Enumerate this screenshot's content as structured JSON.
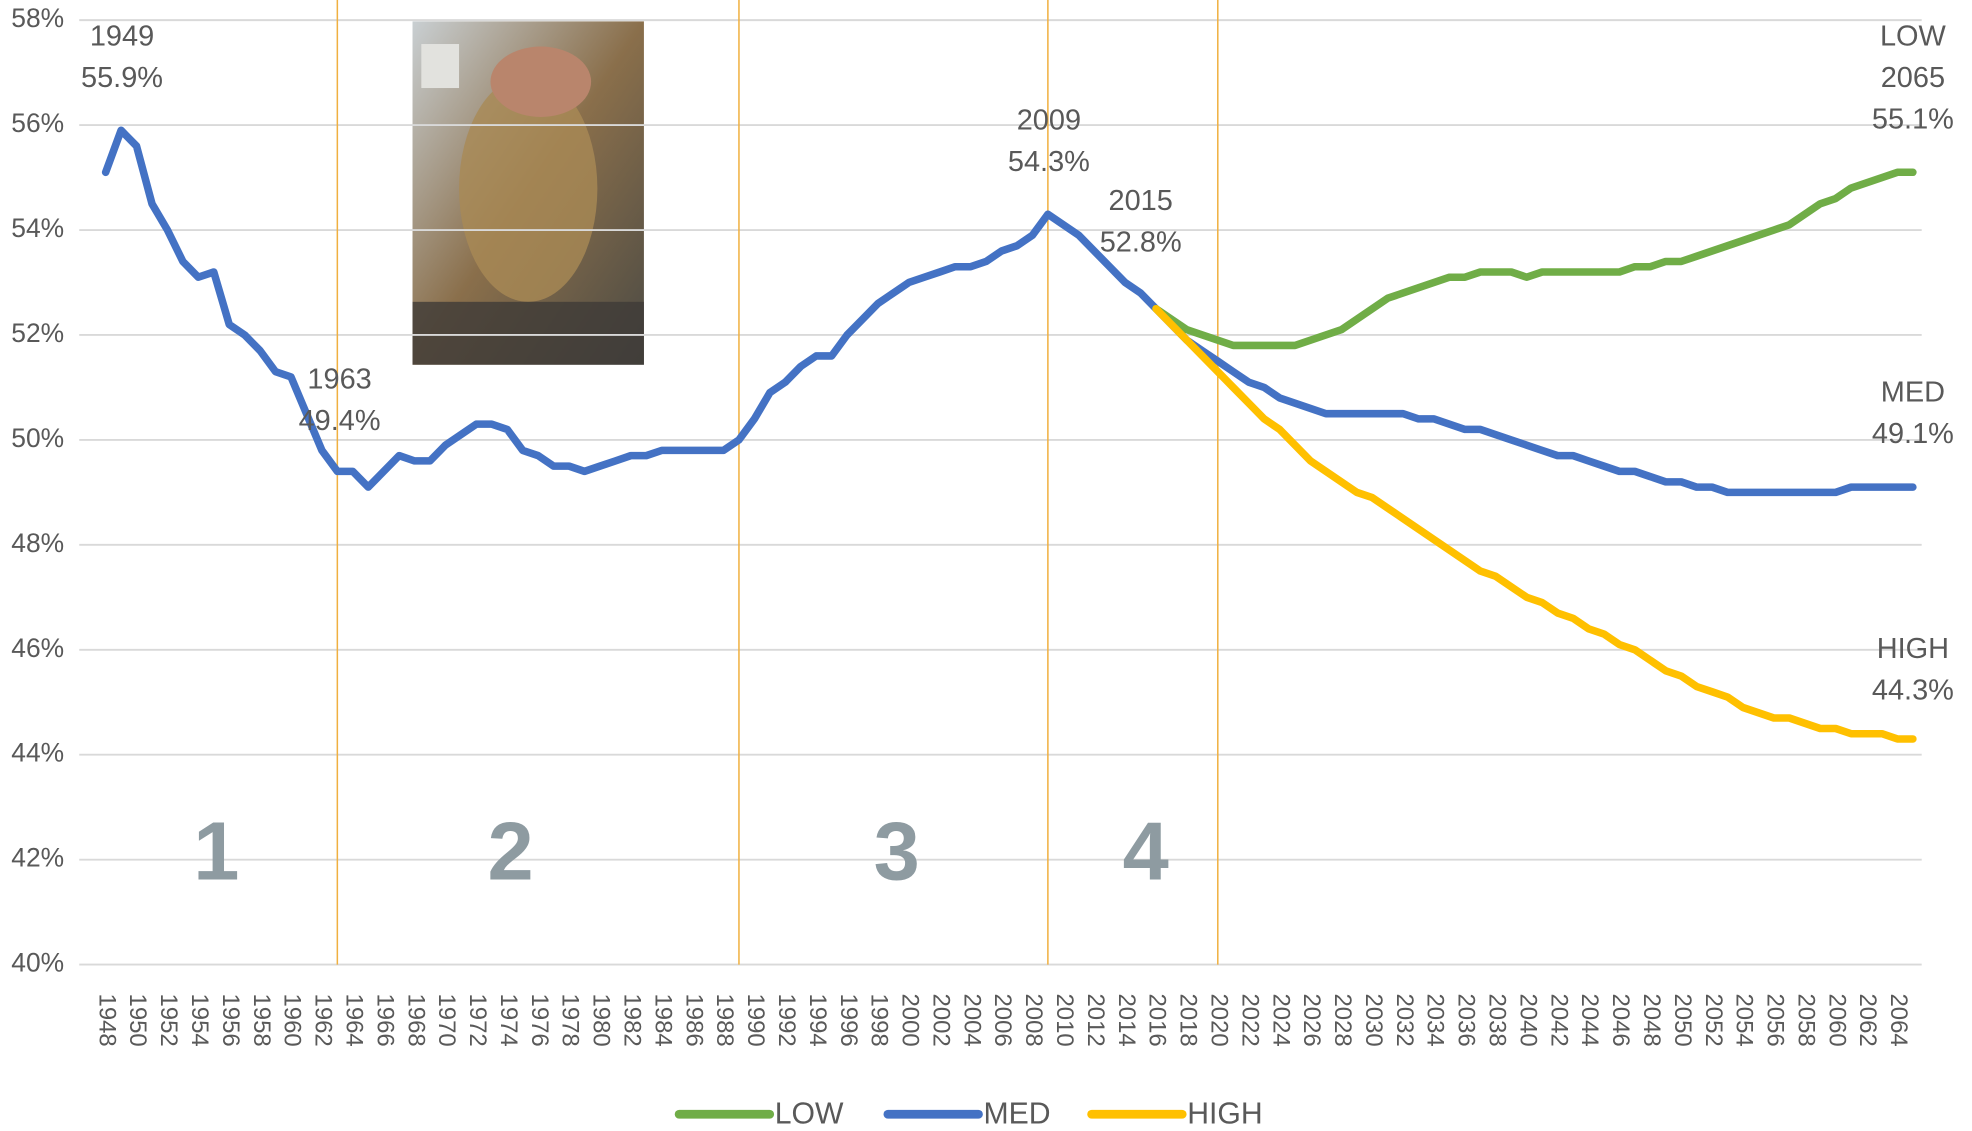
{
  "chart_data": {
    "type": "line",
    "x": [
      1948,
      1949,
      1950,
      1951,
      1952,
      1953,
      1954,
      1955,
      1956,
      1957,
      1958,
      1959,
      1960,
      1961,
      1962,
      1963,
      1964,
      1965,
      1966,
      1967,
      1968,
      1969,
      1970,
      1971,
      1972,
      1973,
      1974,
      1975,
      1976,
      1977,
      1978,
      1979,
      1980,
      1981,
      1982,
      1983,
      1984,
      1985,
      1986,
      1987,
      1988,
      1989,
      1990,
      1991,
      1992,
      1993,
      1994,
      1995,
      1996,
      1997,
      1998,
      1999,
      2000,
      2001,
      2002,
      2003,
      2004,
      2005,
      2006,
      2007,
      2008,
      2009,
      2010,
      2011,
      2012,
      2013,
      2014,
      2015,
      2016,
      2017,
      2018,
      2019,
      2020,
      2021,
      2022,
      2023,
      2024,
      2025,
      2026,
      2027,
      2028,
      2029,
      2030,
      2031,
      2032,
      2033,
      2034,
      2035,
      2036,
      2037,
      2038,
      2039,
      2040,
      2041,
      2042,
      2043,
      2044,
      2045,
      2046,
      2047,
      2048,
      2049,
      2050,
      2051,
      2052,
      2053,
      2054,
      2055,
      2056,
      2057,
      2058,
      2059,
      2060,
      2061,
      2062,
      2063,
      2064,
      2065
    ],
    "xlim": [
      1948,
      2065
    ],
    "xticks": [
      1948,
      1950,
      1952,
      1954,
      1956,
      1958,
      1960,
      1962,
      1964,
      1966,
      1968,
      1970,
      1972,
      1974,
      1976,
      1978,
      1980,
      1982,
      1984,
      1986,
      1988,
      1990,
      1992,
      1994,
      1996,
      1998,
      2000,
      2002,
      2004,
      2006,
      2008,
      2010,
      2012,
      2014,
      2016,
      2018,
      2020,
      2022,
      2024,
      2026,
      2028,
      2030,
      2032,
      2034,
      2036,
      2038,
      2040,
      2042,
      2044,
      2046,
      2048,
      2050,
      2052,
      2054,
      2056,
      2058,
      2060,
      2062,
      2064
    ],
    "ylim": [
      40,
      58
    ],
    "yticks": [
      {
        "value": 40,
        "label": "40%"
      },
      {
        "value": 42,
        "label": "42%"
      },
      {
        "value": 44,
        "label": "44%"
      },
      {
        "value": 46,
        "label": "46%"
      },
      {
        "value": 48,
        "label": "48%"
      },
      {
        "value": 50,
        "label": "50%"
      },
      {
        "value": 52,
        "label": "52%"
      },
      {
        "value": 54,
        "label": "54%"
      },
      {
        "value": 56,
        "label": "56%"
      },
      {
        "value": 58,
        "label": "58%"
      }
    ],
    "grid": true,
    "legend": "bottom",
    "series": [
      {
        "name": "LOW",
        "color": "#70ad47",
        "values": [
          null,
          null,
          null,
          null,
          null,
          null,
          null,
          null,
          null,
          null,
          null,
          null,
          null,
          null,
          null,
          null,
          null,
          null,
          null,
          null,
          null,
          null,
          null,
          null,
          null,
          null,
          null,
          null,
          null,
          null,
          null,
          null,
          null,
          null,
          null,
          null,
          null,
          null,
          null,
          null,
          null,
          null,
          null,
          null,
          null,
          null,
          null,
          null,
          null,
          null,
          null,
          null,
          null,
          null,
          null,
          null,
          null,
          null,
          null,
          null,
          null,
          null,
          null,
          null,
          null,
          null,
          null,
          null,
          52.5,
          52.3,
          52.1,
          52.0,
          51.9,
          51.8,
          51.8,
          51.8,
          51.8,
          51.8,
          51.9,
          52.0,
          52.1,
          52.3,
          52.5,
          52.7,
          52.8,
          52.9,
          53.0,
          53.1,
          53.1,
          53.2,
          53.2,
          53.2,
          53.1,
          53.2,
          53.2,
          53.2,
          53.2,
          53.2,
          53.2,
          53.3,
          53.3,
          53.4,
          53.4,
          53.5,
          53.6,
          53.7,
          53.8,
          53.9,
          54.0,
          54.1,
          54.3,
          54.5,
          54.6,
          54.8,
          54.9,
          55.0,
          55.1,
          55.1
        ]
      },
      {
        "name": "MED",
        "color": "#4472c4",
        "values": [
          55.1,
          55.9,
          55.6,
          54.5,
          54.0,
          53.4,
          53.1,
          53.2,
          52.2,
          52.0,
          51.7,
          51.3,
          51.2,
          50.5,
          49.8,
          49.4,
          49.4,
          49.1,
          49.4,
          49.7,
          49.6,
          49.6,
          49.9,
          50.1,
          50.3,
          50.3,
          50.2,
          49.8,
          49.7,
          49.5,
          49.5,
          49.4,
          49.5,
          49.6,
          49.7,
          49.7,
          49.8,
          49.8,
          49.8,
          49.8,
          49.8,
          50.0,
          50.4,
          50.9,
          51.1,
          51.4,
          51.6,
          51.6,
          52.0,
          52.3,
          52.6,
          52.8,
          53.0,
          53.1,
          53.2,
          53.3,
          53.3,
          53.4,
          53.6,
          53.7,
          53.9,
          54.3,
          54.1,
          53.9,
          53.6,
          53.3,
          53.0,
          52.8,
          52.5,
          52.2,
          51.9,
          51.7,
          51.5,
          51.3,
          51.1,
          51.0,
          50.8,
          50.7,
          50.6,
          50.5,
          50.5,
          50.5,
          50.5,
          50.5,
          50.5,
          50.4,
          50.4,
          50.3,
          50.2,
          50.2,
          50.1,
          50.0,
          49.9,
          49.8,
          49.7,
          49.7,
          49.6,
          49.5,
          49.4,
          49.4,
          49.3,
          49.2,
          49.2,
          49.1,
          49.1,
          49.0,
          49.0,
          49.0,
          49.0,
          49.0,
          49.0,
          49.0,
          49.0,
          49.1,
          49.1,
          49.1,
          49.1,
          49.1
        ]
      },
      {
        "name": "HIGH",
        "color": "#ffc000",
        "values": [
          null,
          null,
          null,
          null,
          null,
          null,
          null,
          null,
          null,
          null,
          null,
          null,
          null,
          null,
          null,
          null,
          null,
          null,
          null,
          null,
          null,
          null,
          null,
          null,
          null,
          null,
          null,
          null,
          null,
          null,
          null,
          null,
          null,
          null,
          null,
          null,
          null,
          null,
          null,
          null,
          null,
          null,
          null,
          null,
          null,
          null,
          null,
          null,
          null,
          null,
          null,
          null,
          null,
          null,
          null,
          null,
          null,
          null,
          null,
          null,
          null,
          null,
          null,
          null,
          null,
          null,
          null,
          null,
          52.5,
          52.2,
          51.9,
          51.6,
          51.3,
          51.0,
          50.7,
          50.4,
          50.2,
          49.9,
          49.6,
          49.4,
          49.2,
          49.0,
          48.9,
          48.7,
          48.5,
          48.3,
          48.1,
          47.9,
          47.7,
          47.5,
          47.4,
          47.2,
          47.0,
          46.9,
          46.7,
          46.6,
          46.4,
          46.3,
          46.1,
          46.0,
          45.8,
          45.6,
          45.5,
          45.3,
          45.2,
          45.1,
          44.9,
          44.8,
          44.7,
          44.7,
          44.6,
          44.5,
          44.5,
          44.4,
          44.4,
          44.4,
          44.3,
          44.3
        ]
      }
    ],
    "period_lines": [
      1963,
      1989,
      2009,
      2020
    ],
    "period_labels": [
      "1",
      "2",
      "3",
      "4"
    ],
    "annotations": [
      {
        "lines": [
          "1949",
          "55.9%"
        ]
      },
      {
        "lines": [
          "1963",
          "49.4%"
        ]
      },
      {
        "lines": [
          "2009",
          "54.3%"
        ]
      },
      {
        "lines": [
          "2015",
          "52.8%"
        ]
      },
      {
        "lines": [
          "LOW",
          "2065",
          "55.1%"
        ]
      },
      {
        "lines": [
          "MED",
          "49.1%"
        ]
      },
      {
        "lines": [
          "HIGH",
          "44.3%"
        ]
      }
    ]
  }
}
